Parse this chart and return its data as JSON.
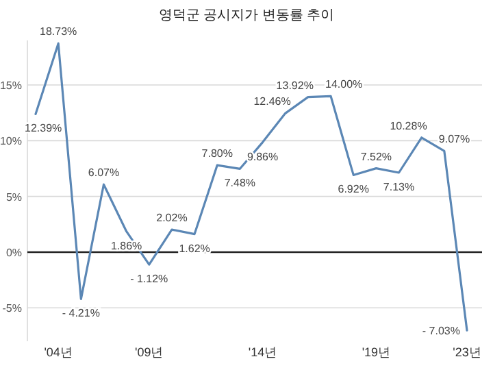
{
  "chart_data": {
    "type": "line",
    "title": "영덕군 공시지가 변동률 추이",
    "categories": [
      null,
      "'04년",
      null,
      null,
      null,
      "'09년",
      null,
      null,
      null,
      null,
      "'14년",
      null,
      null,
      null,
      null,
      "'19년",
      null,
      null,
      null,
      "'23년"
    ],
    "series": [
      {
        "color": "#5b87b5",
        "values": [
          12.39,
          18.73,
          -4.21,
          6.07,
          1.86,
          -1.12,
          2.02,
          1.62,
          7.8,
          7.48,
          9.86,
          12.46,
          13.92,
          14.0,
          6.92,
          7.52,
          7.13,
          10.28,
          9.07,
          -7.03
        ],
        "value_labels": [
          "12.39%",
          "18.73%",
          "- 4.21%",
          "6.07%",
          "1.86%",
          "- 1.12%",
          "2.02%",
          "1.62%",
          "7.80%",
          "7.48%",
          "9.86%",
          "12.46%",
          "13.92%",
          "14.00%",
          "6.92%",
          "7.52%",
          "7.13%",
          "10.28%",
          "9.07%",
          "- 7.03%"
        ]
      }
    ],
    "ylim": [
      -8,
      19
    ],
    "yticks": [
      {
        "value": -5,
        "label": "-5%"
      },
      {
        "value": 0,
        "label": "0%"
      },
      {
        "value": 5,
        "label": "5%"
      },
      {
        "value": 10,
        "label": "10%"
      },
      {
        "value": 15,
        "label": "15%"
      }
    ],
    "grid": "y",
    "marker": "none",
    "line_style": "solid"
  }
}
